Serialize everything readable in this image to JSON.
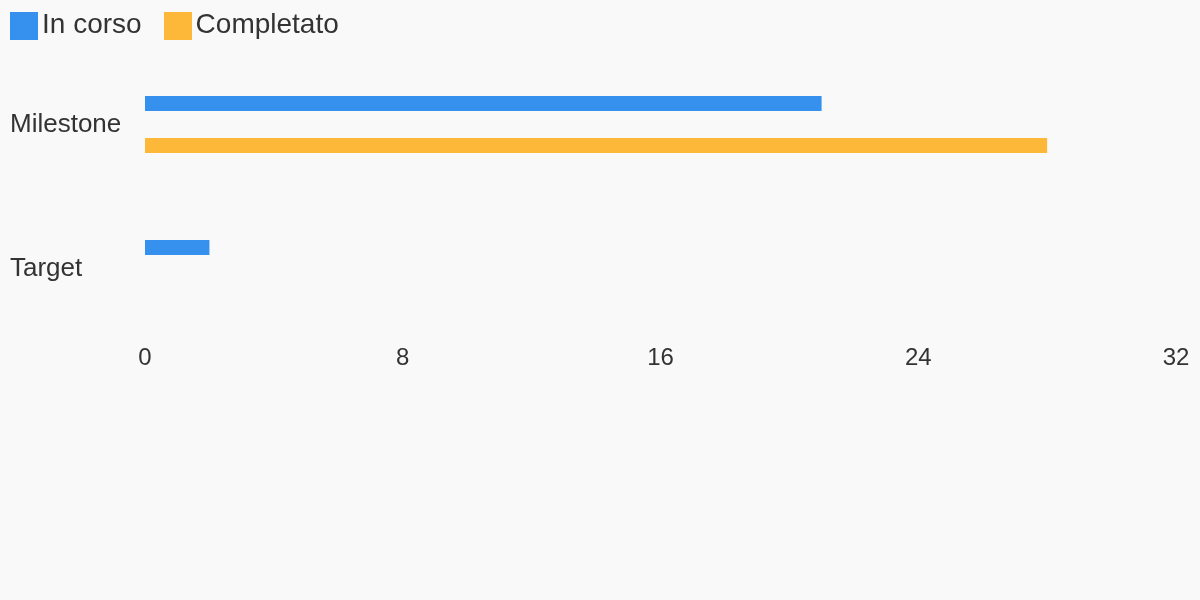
{
  "chart_data": {
    "type": "bar",
    "orientation": "horizontal",
    "categories": [
      "Milestone",
      "Target"
    ],
    "series": [
      {
        "name": "In corso",
        "color": "#3590ee",
        "values": [
          21,
          2
        ]
      },
      {
        "name": "Completato",
        "color": "#fdb839",
        "values": [
          28,
          0
        ]
      }
    ],
    "xlim": [
      0,
      32
    ],
    "xticks": [
      0,
      8,
      16,
      24,
      32
    ],
    "grid": false,
    "legend": "top left"
  }
}
